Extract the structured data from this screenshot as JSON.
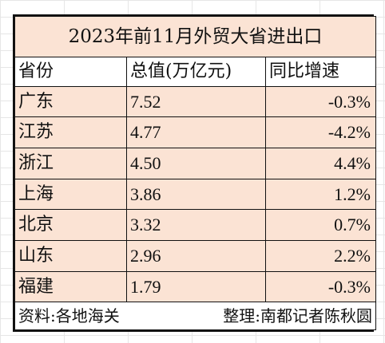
{
  "title": "2023年前11月外贸大省进出口",
  "headers": {
    "province": "省份",
    "total": "总值(万亿元)",
    "growth": "同比增速"
  },
  "rows": [
    {
      "province": "广东",
      "total": "7.52",
      "growth": "-0.3%"
    },
    {
      "province": "江苏",
      "total": "4.77",
      "growth": "-4.2%"
    },
    {
      "province": "浙江",
      "total": "4.50",
      "growth": "4.4%"
    },
    {
      "province": "上海",
      "total": "3.86",
      "growth": "1.2%"
    },
    {
      "province": "北京",
      "total": "3.32",
      "growth": "0.7%"
    },
    {
      "province": "山东",
      "total": "2.96",
      "growth": "2.2%"
    },
    {
      "province": "福建",
      "total": "1.79",
      "growth": "-0.3%"
    }
  ],
  "footer": {
    "source": "资料:各地海关",
    "compiler": "整理:南都记者陈秋圆"
  },
  "colors": {
    "fill": "#fbe3d4",
    "border": "#111111"
  }
}
